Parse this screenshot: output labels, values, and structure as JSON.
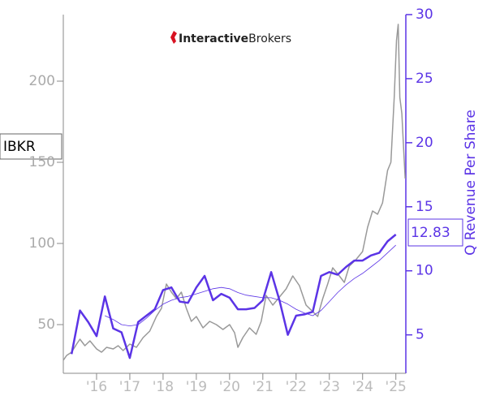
{
  "chart_data": {
    "type": "line",
    "logo": {
      "bold": "Interactive",
      "light": "Brokers"
    },
    "ticker": "IBKR",
    "last_label": "12.83",
    "y2_label": "Q Revenue Per Share",
    "xlim": [
      2015.0,
      2025.3
    ],
    "xticks": [
      {
        "value": 2016,
        "label": "'16"
      },
      {
        "value": 2017,
        "label": "'17"
      },
      {
        "value": 2018,
        "label": "'18"
      },
      {
        "value": 2019,
        "label": "'19"
      },
      {
        "value": 2020,
        "label": "'20"
      },
      {
        "value": 2021,
        "label": "'21"
      },
      {
        "value": 2022,
        "label": "'22"
      },
      {
        "value": 2023,
        "label": "'23"
      },
      {
        "value": 2024,
        "label": "'24"
      },
      {
        "value": 2025,
        "label": "'25"
      }
    ],
    "ylim": [
      20,
      241
    ],
    "yticks": [
      50,
      100,
      150,
      200
    ],
    "y2lim": [
      2,
      30
    ],
    "y2ticks": [
      5,
      10,
      15,
      20,
      25,
      30
    ],
    "series": [
      {
        "color": "#999999",
        "axis": "y",
        "width": 1.5,
        "x": [
          2015.0,
          2015.1,
          2015.25,
          2015.4,
          2015.5,
          2015.65,
          2015.8,
          2016.0,
          2016.15,
          2016.3,
          2016.5,
          2016.65,
          2016.8,
          2017.0,
          2017.2,
          2017.4,
          2017.6,
          2017.8,
          2017.95,
          2018.1,
          2018.25,
          2018.4,
          2018.55,
          2018.7,
          2018.85,
          2019.0,
          2019.2,
          2019.4,
          2019.6,
          2019.8,
          2020.0,
          2020.15,
          2020.25,
          2020.4,
          2020.6,
          2020.8,
          2020.95,
          2021.1,
          2021.3,
          2021.5,
          2021.7,
          2021.9,
          2022.1,
          2022.3,
          2022.5,
          2022.65,
          2022.8,
          2022.95,
          2023.1,
          2023.3,
          2023.45,
          2023.6,
          2023.8,
          2024.0,
          2024.15,
          2024.3,
          2024.45,
          2024.6,
          2024.75,
          2024.85,
          2024.95,
          2025.02,
          2025.07,
          2025.12,
          2025.18,
          2025.23,
          2025.28
        ],
        "values": [
          28,
          31,
          33,
          38,
          41,
          37,
          40,
          35,
          33,
          36,
          35,
          37,
          34,
          38,
          36,
          42,
          46,
          55,
          60,
          75,
          70,
          66,
          70,
          60,
          52,
          55,
          48,
          52,
          50,
          47,
          50,
          45,
          36,
          42,
          48,
          44,
          52,
          68,
          62,
          67,
          72,
          80,
          74,
          62,
          58,
          55,
          66,
          75,
          85,
          80,
          76,
          86,
          90,
          95,
          110,
          120,
          118,
          125,
          145,
          150,
          190,
          225,
          235,
          190,
          180,
          160,
          140
        ]
      },
      {
        "color": "#5b34e6",
        "axis": "y2",
        "width": 2.5,
        "x": [
          2015.25,
          2015.5,
          2015.75,
          2016.0,
          2016.25,
          2016.5,
          2016.75,
          2017.0,
          2017.25,
          2017.5,
          2017.75,
          2018.0,
          2018.25,
          2018.5,
          2018.75,
          2019.0,
          2019.25,
          2019.5,
          2019.75,
          2020.0,
          2020.25,
          2020.5,
          2020.75,
          2021.0,
          2021.25,
          2021.5,
          2021.75,
          2022.0,
          2022.25,
          2022.5,
          2022.75,
          2023.0,
          2023.25,
          2023.5,
          2023.75,
          2024.0,
          2024.25,
          2024.5,
          2024.75,
          2025.0
        ],
        "values": [
          3.5,
          6.9,
          6.0,
          4.9,
          8.0,
          5.5,
          5.2,
          3.2,
          6.0,
          6.5,
          7.0,
          8.5,
          8.7,
          7.6,
          7.5,
          8.7,
          9.6,
          7.7,
          8.2,
          7.9,
          7.0,
          7.0,
          7.1,
          7.7,
          9.9,
          7.7,
          5.0,
          6.5,
          6.6,
          6.8,
          9.6,
          9.9,
          9.7,
          10.3,
          10.8,
          10.8,
          11.2,
          11.4,
          12.3,
          12.83
        ]
      },
      {
        "color": "#5b34e6",
        "axis": "y2",
        "width": 0.8,
        "x": [
          2015.25,
          2015.5,
          2015.75,
          2016.0,
          2016.25,
          2016.5,
          2016.75,
          2017.0,
          2017.25,
          2017.5,
          2017.75,
          2018.0,
          2018.25,
          2018.5,
          2018.75,
          2019.0,
          2019.25,
          2019.5,
          2019.75,
          2020.0,
          2020.25,
          2020.5,
          2020.75,
          2021.0,
          2021.25,
          2021.5,
          2021.75,
          2022.0,
          2022.25,
          2022.5,
          2022.75,
          2023.0,
          2023.25,
          2023.5,
          2023.75,
          2024.0,
          2024.25,
          2024.5,
          2024.75,
          2025.0
        ],
        "values": [
          null,
          null,
          null,
          null,
          6.5,
          6.2,
          5.8,
          5.7,
          5.8,
          6.3,
          6.9,
          7.4,
          7.7,
          7.9,
          8.0,
          8.2,
          8.4,
          8.6,
          8.7,
          8.6,
          8.3,
          8.1,
          8.0,
          7.9,
          7.9,
          7.7,
          7.4,
          7.0,
          6.7,
          6.5,
          6.9,
          7.6,
          8.3,
          8.9,
          9.4,
          9.8,
          10.3,
          10.8,
          11.4,
          12.0
        ]
      }
    ]
  }
}
